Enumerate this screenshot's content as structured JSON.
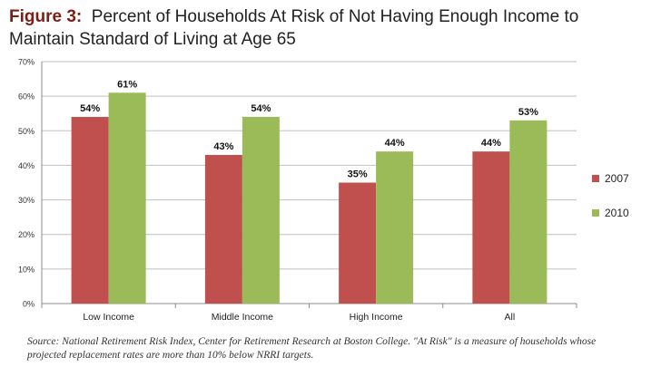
{
  "figure": {
    "label": "Figure 3",
    "title": "Percent of Households At Risk of Not Having Enough Income to Maintain Standard of Living at Age 65"
  },
  "source": "Source:  National Retirement Risk Index, Center for Retirement Research at Boston College. \"At Risk\" is a measure of households whose projected replacement rates are more than 10% below NRRI targets.",
  "chart_data": {
    "type": "bar",
    "categories": [
      "Low Income",
      "Middle Income",
      "High Income",
      "All"
    ],
    "series": [
      {
        "name": "2007",
        "values": [
          54,
          43,
          35,
          44
        ],
        "color": "#c0504d"
      },
      {
        "name": "2010",
        "values": [
          61,
          54,
          44,
          53
        ],
        "color": "#9bbb59"
      }
    ],
    "data_labels": [
      [
        "54%",
        "43%",
        "35%",
        "44%"
      ],
      [
        "61%",
        "54%",
        "44%",
        "53%"
      ]
    ],
    "ylim": [
      0,
      70
    ],
    "yticks": [
      "0%",
      "10%",
      "20%",
      "30%",
      "40%",
      "50%",
      "60%",
      "70%"
    ],
    "grid": true,
    "legend": "right"
  }
}
